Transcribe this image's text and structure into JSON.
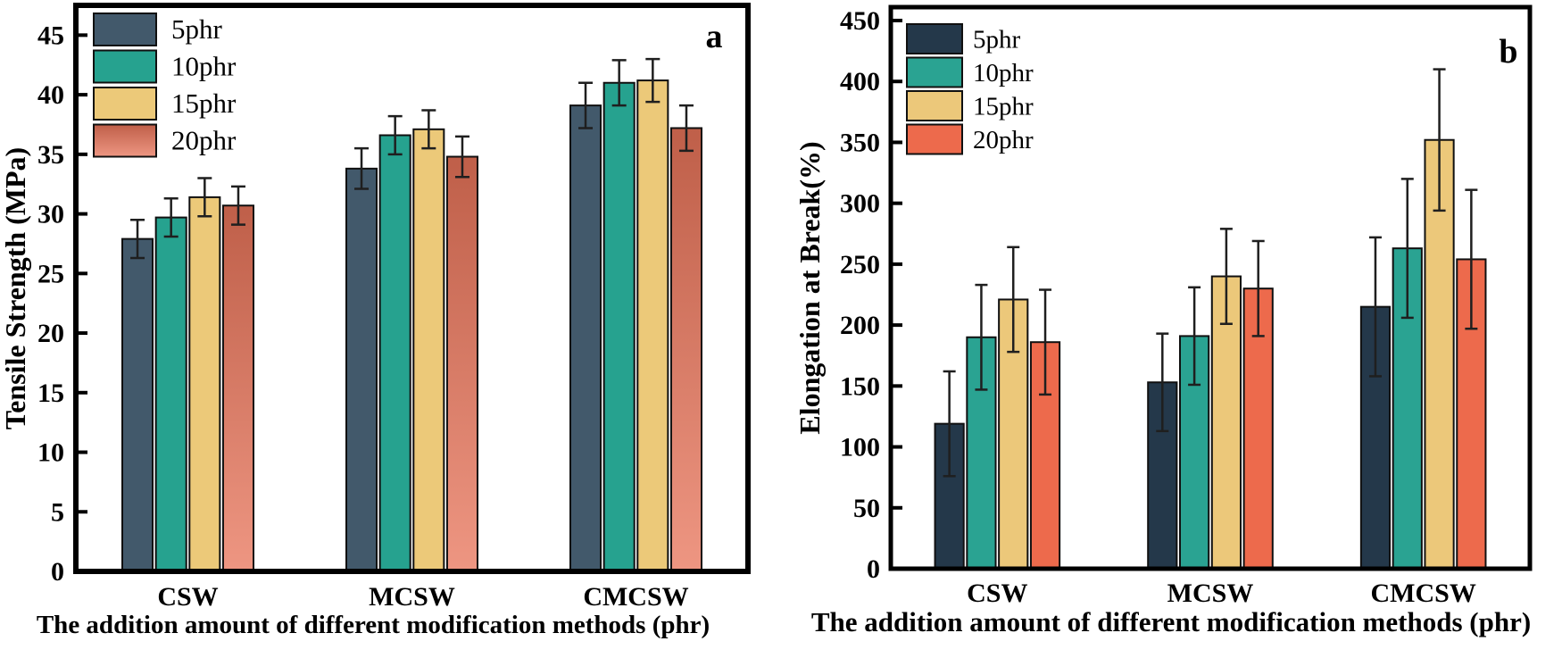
{
  "figure": {
    "background": "#ffffff",
    "text_color": "#000000",
    "axis_color": "#000000",
    "error_bar_color": "#1f1f1f"
  },
  "chart_data": [
    {
      "type": "bar",
      "panel_label": "a",
      "title": "",
      "xlabel": "The addition amount of different modification methods (phr)",
      "ylabel": "Tensile Strength (MPa)",
      "categories": [
        "CSW",
        "MCSW",
        "CMCSW"
      ],
      "ylim": [
        0,
        47.5
      ],
      "yticks": [
        0,
        5,
        10,
        15,
        20,
        25,
        30,
        35,
        40,
        45
      ],
      "grid": false,
      "legend_position": "top-left",
      "legend_labels": [
        "5phr",
        "10phr",
        "15phr",
        "20phr"
      ],
      "series": [
        {
          "name": "5phr",
          "color": "#42596b",
          "values": [
            27.9,
            33.8,
            39.1
          ],
          "errors": [
            1.6,
            1.7,
            1.9
          ]
        },
        {
          "name": "10phr",
          "color": "#26a28f",
          "values": [
            29.7,
            36.6,
            41.0
          ],
          "errors": [
            1.6,
            1.6,
            1.9
          ]
        },
        {
          "name": "15phr",
          "color": "#ecc979",
          "values": [
            31.4,
            37.1,
            41.2
          ],
          "errors": [
            1.6,
            1.6,
            1.8
          ]
        },
        {
          "name": "20phr",
          "color": "#bf5f49",
          "color_bottom": "#ee9682",
          "values": [
            30.7,
            34.8,
            37.2
          ],
          "errors": [
            1.6,
            1.7,
            1.9
          ]
        }
      ]
    },
    {
      "type": "bar",
      "panel_label": "b",
      "title": "",
      "xlabel": "The addition amount of different modification methods (phr)",
      "ylabel": "Elongation at Break(%)",
      "categories": [
        "CSW",
        "MCSW",
        "CMCSW"
      ],
      "ylim": [
        0,
        461
      ],
      "yticks": [
        0,
        50,
        100,
        150,
        200,
        250,
        300,
        350,
        400,
        450
      ],
      "grid": false,
      "legend_position": "top-left",
      "legend_labels": [
        "5phr",
        "10phr",
        "15phr",
        "20phr"
      ],
      "series": [
        {
          "name": "5phr",
          "color": "#24384a",
          "values": [
            119,
            153,
            215
          ],
          "errors": [
            43,
            40,
            57
          ]
        },
        {
          "name": "10phr",
          "color": "#2aa392",
          "values": [
            190,
            191,
            263
          ],
          "errors": [
            43,
            40,
            57
          ]
        },
        {
          "name": "15phr",
          "color": "#ecc87a",
          "values": [
            221,
            240,
            352
          ],
          "errors": [
            43,
            39,
            58
          ]
        },
        {
          "name": "20phr",
          "color": "#ed6a4c",
          "values": [
            186,
            230,
            254
          ],
          "errors": [
            43,
            39,
            57
          ]
        }
      ]
    }
  ]
}
